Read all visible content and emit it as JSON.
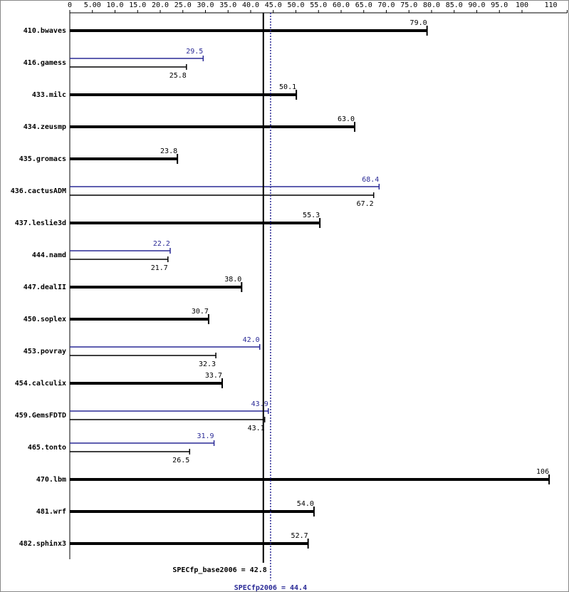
{
  "chart_data": {
    "type": "bar",
    "orientation": "horizontal",
    "categories": [
      "410.bwaves",
      "416.gamess",
      "433.milc",
      "434.zeusmp",
      "435.gromacs",
      "436.cactusADM",
      "437.leslie3d",
      "444.namd",
      "447.dealII",
      "450.soplex",
      "453.povray",
      "454.calculix",
      "459.GemsFDTD",
      "465.tonto",
      "470.lbm",
      "481.wrf",
      "482.sphinx3"
    ],
    "series": [
      {
        "color": "#000000",
        "values": [
          79.0,
          25.8,
          50.1,
          63.0,
          23.8,
          67.2,
          55.3,
          21.7,
          38.0,
          30.7,
          32.3,
          33.7,
          43.1,
          26.5,
          106,
          54.0,
          52.7
        ],
        "value_labels": [
          "79.0",
          "25.8",
          "50.1",
          "63.0",
          "23.8",
          "67.2",
          "55.3",
          "21.7",
          "38.0",
          "30.7",
          "32.3",
          "33.7",
          "43.1",
          "26.5",
          "106",
          "54.0",
          "52.7"
        ]
      },
      {
        "color": "#2a2a96",
        "values": [
          null,
          29.5,
          null,
          null,
          null,
          68.4,
          null,
          22.2,
          null,
          null,
          42.0,
          null,
          43.9,
          31.9,
          null,
          null,
          null
        ],
        "value_labels": [
          null,
          "29.5",
          null,
          null,
          null,
          "68.4",
          null,
          "22.2",
          null,
          null,
          "42.0",
          null,
          "43.9",
          "31.9",
          null,
          null,
          null
        ]
      }
    ],
    "xlim": [
      0,
      110
    ],
    "xticks": [
      0,
      {
        "value": 5,
        "label": "5.00"
      },
      {
        "value": 10,
        "label": "10.0"
      },
      {
        "value": 15,
        "label": "15.0"
      },
      {
        "value": 20,
        "label": "20.0"
      },
      {
        "value": 25,
        "label": "25.0"
      },
      {
        "value": 30,
        "label": "30.0"
      },
      {
        "value": 35,
        "label": "35.0"
      },
      {
        "value": 40,
        "label": "40.0"
      },
      {
        "value": 45,
        "label": "45.0"
      },
      {
        "value": 50,
        "label": "50.0"
      },
      {
        "value": 55,
        "label": "55.0"
      },
      {
        "value": 60,
        "label": "60.0"
      },
      {
        "value": 65,
        "label": "65.0"
      },
      {
        "value": 70,
        "label": "70.0"
      },
      {
        "value": 75,
        "label": "75.0"
      },
      {
        "value": 80,
        "label": "80.0"
      },
      {
        "value": 85,
        "label": "85.0"
      },
      {
        "value": 90,
        "label": "90.0"
      },
      {
        "value": 95,
        "label": "95.0"
      },
      100,
      110
    ],
    "reference_lines": [
      {
        "label": "SPECfp_base2006 = 42.8",
        "value": 42.8,
        "color": "#000000",
        "style": "solid"
      },
      {
        "label": "SPECfp2006 = 44.4",
        "value": 44.4,
        "color": "#2a2a96",
        "style": "dotted"
      }
    ]
  }
}
